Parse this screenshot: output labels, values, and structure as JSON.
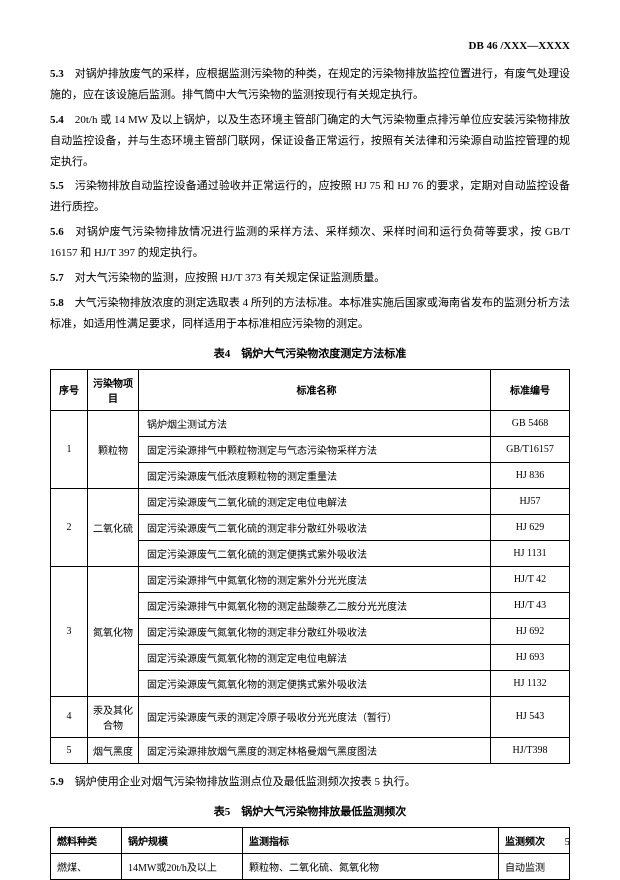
{
  "header": "DB 46 /XXX—XXXX",
  "paragraphs": {
    "p53_sec": "5.3",
    "p53": "　对锅炉排放废气的采样，应根据监测污染物的种类，在规定的污染物排放监控位置进行，有废气处理设施的，应在该设施后监测。排气筒中大气污染物的监测按现行有关规定执行。",
    "p54_sec": "5.4",
    "p54": "　20t/h 或 14 MW 及以上锅炉，以及生态环境主管部门确定的大气污染物重点排污单位应安装污染物排放自动监控设备，并与生态环境主管部门联网，保证设备正常运行，按照有关法律和污染源自动监控管理的规定执行。",
    "p55_sec": "5.5",
    "p55": "　污染物排放自动监控设备通过验收并正常运行的，应按照 HJ 75 和 HJ 76 的要求，定期对自动监控设备进行质控。",
    "p56_sec": "5.6",
    "p56": "　对锅炉废气污染物排放情况进行监测的采样方法、采样频次、采样时间和运行负荷等要求，按 GB/T 16157 和 HJ/T 397 的规定执行。",
    "p57_sec": "5.7",
    "p57": "　对大气污染物的监测，应按照 HJ/T 373 有关规定保证监测质量。",
    "p58_sec": "5.8",
    "p58": "　大气污染物排放浓度的测定选取表 4 所列的方法标准。本标准实施后国家或海南省发布的监测分析方法标准，如适用性满足要求，同样适用于本标准相应污染物的测定。",
    "p59_sec": "5.9",
    "p59": "　锅炉使用企业对烟气污染物排放监测点位及最低监测频次按表 5 执行。"
  },
  "table4": {
    "title": "表4　锅炉大气污染物浓度测定方法标准",
    "headers": {
      "seq": "序号",
      "pol": "污染物项目",
      "name": "标准名称",
      "code": "标准编号"
    },
    "rows": [
      {
        "seq": "1",
        "pol": "颗粒物",
        "items": [
          {
            "name": "锅炉烟尘测试方法",
            "code": "GB 5468"
          },
          {
            "name": "固定污染源排气中颗粒物测定与气态污染物采样方法",
            "code": "GB/T16157"
          },
          {
            "name": "固定污染源废气低浓度颗粒物的测定重量法",
            "code": "HJ 836"
          }
        ]
      },
      {
        "seq": "2",
        "pol": "二氧化硫",
        "items": [
          {
            "name": "固定污染源废气二氧化硫的测定定电位电解法",
            "code": "HJ57"
          },
          {
            "name": "固定污染源废气二氧化硫的测定非分散红外吸收法",
            "code": "HJ 629"
          },
          {
            "name": "固定污染源废气二氧化硫的测定便携式紫外吸收法",
            "code": "HJ 1131"
          }
        ]
      },
      {
        "seq": "3",
        "pol": "氮氧化物",
        "items": [
          {
            "name": "固定污染源排气中氮氧化物的测定紫外分光光度法",
            "code": "HJ/T 42"
          },
          {
            "name": "固定污染源排气中氮氧化物的测定盐酸萘乙二胺分光光度法",
            "code": "HJ/T 43"
          },
          {
            "name": "固定污染源废气氮氧化物的测定非分散红外吸收法",
            "code": "HJ 692"
          },
          {
            "name": "固定污染源废气氮氧化物的测定定电位电解法",
            "code": "HJ 693"
          },
          {
            "name": "固定污染源废气氮氧化物的测定便携式紫外吸收法",
            "code": "HJ 1132"
          }
        ]
      },
      {
        "seq": "4",
        "pol": "汞及其化合物",
        "items": [
          {
            "name": "固定污染源废气汞的测定冷原子吸收分光光度法（暂行）",
            "code": "HJ 543"
          }
        ]
      },
      {
        "seq": "5",
        "pol": "烟气黑度",
        "items": [
          {
            "name": "固定污染源排放烟气黑度的测定林格曼烟气黑度图法",
            "code": "HJ/T398"
          }
        ]
      }
    ]
  },
  "table5": {
    "title": "表5　锅炉大气污染物排放最低监测频次",
    "headers": {
      "fuel": "燃料种类",
      "scale": "锅炉规模",
      "indicator": "监测指标",
      "freq": "监测频次"
    },
    "rows": [
      {
        "fuel": "燃煤、",
        "scale": "14MW或20t/h及以上",
        "indicator": "颗粒物、二氧化硫、氮氧化物",
        "freq": "自动监测"
      }
    ]
  },
  "pageNum": "5"
}
